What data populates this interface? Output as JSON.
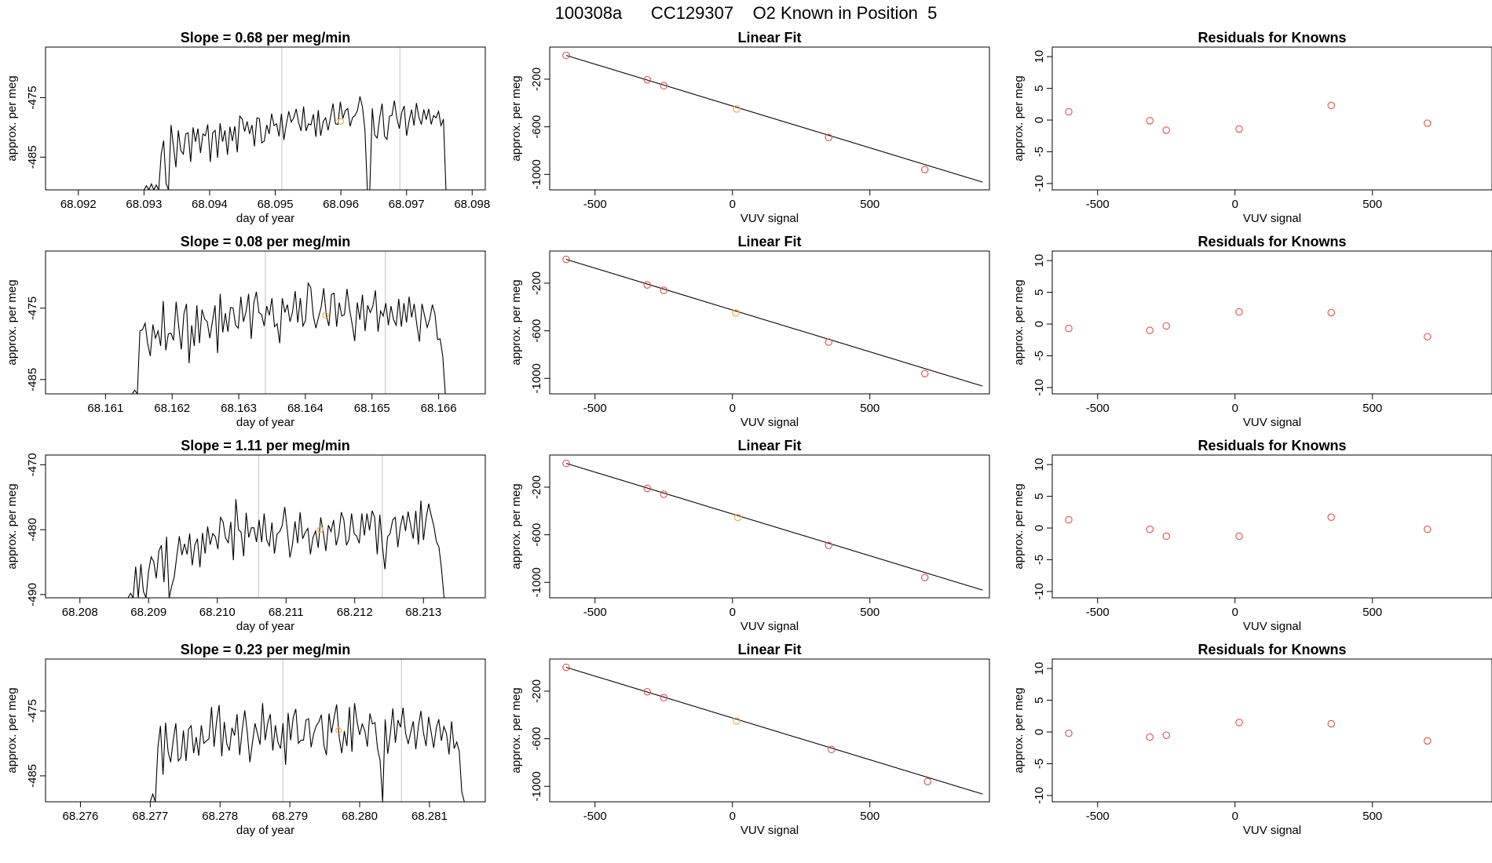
{
  "figure_title": "100308a      CC129307    O2 Known in Position  5",
  "colors": {
    "trace": "#000000",
    "reference_line": "#cccccc",
    "known_point": "#d9534f",
    "sample_point": "#f0ad4e",
    "fit_line": "#000000"
  },
  "chart_data": [
    {
      "type": "line",
      "row": 1,
      "title": "Slope =  0.68  per meg/min",
      "xlabel": "day of year",
      "ylabel": "approx. per meg",
      "xlim": [
        68.0915,
        68.0982
      ],
      "ylim": [
        -490.5,
        -466.5
      ],
      "xticks": [
        "68.092",
        "68.093",
        "68.094",
        "68.095",
        "68.096",
        "68.097",
        "68.098"
      ],
      "yticks": [
        "-485",
        "-475"
      ],
      "vlines": [
        68.0951,
        68.0969
      ],
      "series": [
        {
          "x_start": 68.093,
          "x_end": 68.0976,
          "values": [
            -490.5,
            -489.8,
            -490.5,
            -489.5,
            -490.5,
            -489.7,
            -490.5,
            -484.5,
            -482.2,
            -489.4,
            -490.5,
            -479.6,
            -483.2,
            -486.7,
            -480.5,
            -483.9,
            -484.5,
            -481.1,
            -480.9,
            -485.8,
            -480.0,
            -482.4,
            -480.2,
            -484.3,
            -481.1,
            -481.4,
            -479.5,
            -485.8,
            -480.9,
            -480.5,
            -485.1,
            -479.3,
            -482.4,
            -480.5,
            -484.6,
            -479.9,
            -482.3,
            -479.8,
            -484.2,
            -478.1,
            -478.6,
            -480.7,
            -479.0,
            -481.1,
            -479.6,
            -483.2,
            -478.4,
            -478.5,
            -482.6,
            -482.3,
            -479.6,
            -481.1,
            -477.7,
            -479.7,
            -479.4,
            -481.5,
            -477.7,
            -482.1,
            -479.4,
            -477.3,
            -479.1,
            -478.4,
            -476.9,
            -479.2,
            -480.6,
            -476.5,
            -480.6,
            -479.4,
            -479.6,
            -477.8,
            -481.6,
            -477.1,
            -481.4,
            -479.0,
            -478.4,
            -480.5,
            -478.3,
            -476.0,
            -479.4,
            -479.5,
            -475.7,
            -478.5,
            -477.2,
            -476.8,
            -479.8,
            -478.3,
            -478.0,
            -477.1,
            -474.8,
            -476.6,
            -480.4,
            -490.5,
            -490.5,
            -476.8,
            -481.3,
            -481.8,
            -478.4,
            -476.0,
            -481.5,
            -482.0,
            -478.1,
            -478.0,
            -475.5,
            -478.4,
            -480.2,
            -477.5,
            -476.4,
            -481.4,
            -478.9,
            -477.0,
            -479.7,
            -475.9,
            -478.3,
            -479.5,
            -477.0,
            -478.7,
            -476.9,
            -479.5,
            -478.0,
            -478.4,
            -477.3,
            -479.7,
            -478.6,
            -490.5
          ]
        }
      ],
      "highlight": {
        "x": 68.096,
        "y": -479.0
      }
    },
    {
      "type": "scatter",
      "row": 1,
      "title": "Linear Fit",
      "xlabel": "VUV signal",
      "ylabel": "approx. per meg",
      "xlim": [
        -665,
        935
      ],
      "ylim": [
        -1130,
        70
      ],
      "xticks": [
        "-500",
        "0",
        "500"
      ],
      "yticks": [
        "-1000",
        "-600",
        "-200"
      ],
      "fit_line": {
        "x": [
          -605,
          910
        ],
        "y": [
          0,
          -1065
        ]
      },
      "known_points": {
        "x": [
          -605,
          -310,
          -250,
          350,
          700
        ],
        "y": [
          0,
          -205,
          -255,
          -690,
          -960
        ]
      },
      "sample_point": {
        "x": 15,
        "y": -450
      }
    },
    {
      "type": "scatter",
      "row": 1,
      "title": "Residuals for Knowns",
      "xlabel": "VUV signal",
      "ylabel": "approx. per meg",
      "xlim": [
        -665,
        935
      ],
      "ylim": [
        -11,
        11.5
      ],
      "xticks": [
        "-500",
        "0",
        "500"
      ],
      "yticks": [
        "-10",
        "-5",
        "0",
        "5",
        "10"
      ],
      "known_points": {
        "x": [
          -605,
          -310,
          -250,
          15,
          350,
          700
        ],
        "y": [
          1.3,
          -0.1,
          -1.6,
          -1.4,
          2.3,
          -0.5
        ]
      }
    },
    {
      "type": "line",
      "row": 2,
      "title": "Slope =  0.08  per meg/min",
      "xlabel": "day of year",
      "ylabel": "approx. per meg",
      "xlim": [
        68.1601,
        68.1667
      ],
      "ylim": [
        -487,
        -467
      ],
      "xticks": [
        "68.161",
        "68.162",
        "68.163",
        "68.164",
        "68.165",
        "68.166"
      ],
      "yticks": [
        "-485",
        "-475"
      ],
      "vlines": [
        68.1634,
        68.1652
      ],
      "series": [
        {
          "x_start": 68.1614,
          "x_end": 68.1661,
          "values": [
            -487.0,
            -486.5,
            -487.0,
            -478.2,
            -478.0,
            -477.1,
            -480.0,
            -481.7,
            -477.3,
            -479.2,
            -478.2,
            -480.3,
            -474.0,
            -480.9,
            -478.6,
            -478.5,
            -479.5,
            -474.1,
            -477.6,
            -480.8,
            -475.8,
            -474.4,
            -482.7,
            -477.4,
            -480.3,
            -474.6,
            -479.9,
            -475.2,
            -476.5,
            -476.9,
            -479.2,
            -476.9,
            -474.6,
            -481.3,
            -473.0,
            -478.4,
            -475.7,
            -478.3,
            -474.9,
            -475.0,
            -477.4,
            -477.8,
            -473.4,
            -476.9,
            -475.5,
            -473.0,
            -479.3,
            -474.3,
            -472.7,
            -475.6,
            -475.9,
            -477.5,
            -474.7,
            -476.0,
            -473.6,
            -477.6,
            -477.2,
            -479.9,
            -473.6,
            -475.6,
            -474.5,
            -476.9,
            -475.5,
            -472.6,
            -477.0,
            -473.6,
            -477.5,
            -476.7,
            -471.5,
            -472.1,
            -476.1,
            -477.8,
            -476.3,
            -474.9,
            -472.2,
            -476.0,
            -477.5,
            -473.1,
            -472.9,
            -477.6,
            -474.2,
            -476.1,
            -475.9,
            -472.3,
            -475.1,
            -477.2,
            -479.6,
            -474.2,
            -476.6,
            -473.1,
            -478.2,
            -474.6,
            -475.6,
            -474.7,
            -472.5,
            -478.3,
            -475.4,
            -476.1,
            -474.3,
            -477.4,
            -474.7,
            -476.6,
            -477.4,
            -473.7,
            -477.6,
            -474.3,
            -477.0,
            -473.4,
            -476.3,
            -474.4,
            -477.3,
            -479.7,
            -474.4,
            -476.1,
            -477.7,
            -476.5,
            -474.5,
            -475.8,
            -479.4,
            -479.3,
            -481.7,
            -487.0
          ]
        }
      ],
      "highlight": {
        "x": 68.1643,
        "y": -476.0
      }
    },
    {
      "type": "scatter",
      "row": 2,
      "title": "Linear Fit",
      "xlabel": "VUV signal",
      "ylabel": "approx. per meg",
      "xlim": [
        -665,
        935
      ],
      "ylim": [
        -1130,
        70
      ],
      "xticks": [
        "-500",
        "0",
        "500"
      ],
      "yticks": [
        "-1000",
        "-600",
        "-200"
      ],
      "fit_line": {
        "x": [
          -605,
          910
        ],
        "y": [
          0,
          -1065
        ]
      },
      "known_points": {
        "x": [
          -605,
          -310,
          -250,
          350,
          700
        ],
        "y": [
          0,
          -215,
          -260,
          -695,
          -960
        ]
      },
      "sample_point": {
        "x": 12,
        "y": -450
      }
    },
    {
      "type": "scatter",
      "row": 2,
      "title": "Residuals for Knowns",
      "xlabel": "VUV signal",
      "ylabel": "approx. per meg",
      "xlim": [
        -665,
        935
      ],
      "ylim": [
        -11,
        11.5
      ],
      "xticks": [
        "-500",
        "0",
        "500"
      ],
      "yticks": [
        "-10",
        "-5",
        "0",
        "5",
        "10"
      ],
      "known_points": {
        "x": [
          -605,
          -310,
          -250,
          15,
          350,
          700
        ],
        "y": [
          -0.7,
          -1.0,
          -0.3,
          1.9,
          1.8,
          -2.0
        ]
      }
    },
    {
      "type": "line",
      "row": 3,
      "title": "Slope =  1.11  per meg/min",
      "xlabel": "day of year",
      "ylabel": "approx. per meg",
      "xlim": [
        68.2075,
        68.2139
      ],
      "ylim": [
        -490.5,
        -468.5
      ],
      "xticks": [
        "68.208",
        "68.209",
        "68.210",
        "68.211",
        "68.212",
        "68.213"
      ],
      "yticks": [
        "-490",
        "-480",
        "-470"
      ],
      "vlines": [
        68.2106,
        68.2124
      ],
      "series": [
        {
          "x_start": 68.2087,
          "x_end": 68.2133,
          "values": [
            -490.5,
            -489.8,
            -490.5,
            -485.7,
            -490.5,
            -485.3,
            -489.5,
            -490.5,
            -486.4,
            -484.2,
            -484.9,
            -487.5,
            -483.3,
            -482.4,
            -488.1,
            -481.1,
            -490.5,
            -488.7,
            -487.3,
            -484.0,
            -481.0,
            -483.9,
            -482.2,
            -483.8,
            -480.6,
            -485.5,
            -482.4,
            -481.4,
            -485.8,
            -480.5,
            -483.7,
            -479.5,
            -482.3,
            -480.6,
            -481.1,
            -483.0,
            -478.1,
            -478.8,
            -481.3,
            -482.0,
            -478.8,
            -484.7,
            -475.3,
            -480.0,
            -480.4,
            -484.1,
            -477.4,
            -481.2,
            -479.7,
            -479.7,
            -481.9,
            -478.5,
            -481.9,
            -477.5,
            -481.6,
            -482.5,
            -478.9,
            -483.7,
            -480.7,
            -480.3,
            -479.4,
            -476.5,
            -480.1,
            -484.3,
            -482.3,
            -478.7,
            -482.1,
            -477.3,
            -481.4,
            -480.4,
            -479.8,
            -483.8,
            -481.2,
            -480.2,
            -482.8,
            -478.1,
            -480.4,
            -483.3,
            -479.3,
            -480.3,
            -478.5,
            -482.4,
            -480.8,
            -477.3,
            -478.5,
            -482.4,
            -481.5,
            -477.5,
            -480.6,
            -481.0,
            -482.1,
            -477.5,
            -480.9,
            -477.5,
            -480.1,
            -477.1,
            -478.1,
            -483.8,
            -477.7,
            -482.6,
            -486.1,
            -481.1,
            -480.6,
            -478.5,
            -478.1,
            -482.7,
            -479.5,
            -477.8,
            -480.2,
            -477.2,
            -479.4,
            -481.4,
            -477.1,
            -482.3,
            -475.5,
            -481.6,
            -478.3,
            -476.0,
            -477.8,
            -479.4,
            -481.8,
            -482.7,
            -486.0,
            -490.5
          ]
        }
      ],
      "highlight": {
        "x": 68.2115,
        "y": -480.0
      }
    },
    {
      "type": "scatter",
      "row": 3,
      "title": "Linear Fit",
      "xlabel": "VUV signal",
      "ylabel": "approx. per meg",
      "xlim": [
        -665,
        935
      ],
      "ylim": [
        -1130,
        70
      ],
      "xticks": [
        "-500",
        "0",
        "500"
      ],
      "yticks": [
        "-1000",
        "-600",
        "-200"
      ],
      "fit_line": {
        "x": [
          -605,
          910
        ],
        "y": [
          0,
          -1065
        ]
      },
      "known_points": {
        "x": [
          -605,
          -310,
          -250,
          350,
          700
        ],
        "y": [
          0,
          -210,
          -260,
          -690,
          -960
        ]
      },
      "sample_point": {
        "x": 20,
        "y": -455
      }
    },
    {
      "type": "scatter",
      "row": 3,
      "title": "Residuals for Knowns",
      "xlabel": "VUV signal",
      "ylabel": "approx. per meg",
      "xlim": [
        -665,
        935
      ],
      "ylim": [
        -11,
        11.5
      ],
      "xticks": [
        "-500",
        "0",
        "500"
      ],
      "yticks": [
        "-10",
        "-5",
        "0",
        "5",
        "10"
      ],
      "known_points": {
        "x": [
          -605,
          -310,
          -250,
          15,
          350,
          700
        ],
        "y": [
          1.3,
          -0.2,
          -1.3,
          -1.3,
          1.7,
          -0.2
        ]
      }
    },
    {
      "type": "line",
      "row": 4,
      "title": "Slope =  0.23  per meg/min",
      "xlabel": "day of year",
      "ylabel": "approx. per meg",
      "xlim": [
        68.2755,
        68.2818
      ],
      "ylim": [
        -489,
        -467
      ],
      "xticks": [
        "68.276",
        "68.277",
        "68.278",
        "68.279",
        "68.280",
        "68.281"
      ],
      "yticks": [
        "-485",
        "-475"
      ],
      "vlines": [
        68.2789,
        68.2806
      ],
      "series": [
        {
          "x_start": 68.277,
          "x_end": 68.2815,
          "values": [
            -489.0,
            -487.8,
            -489.0,
            -480.6,
            -477.3,
            -484.8,
            -476.8,
            -481.3,
            -482.9,
            -479.5,
            -476.9,
            -482.7,
            -482.2,
            -478.0,
            -482.7,
            -477.8,
            -477.3,
            -481.5,
            -479.0,
            -481.9,
            -477.2,
            -480.0,
            -479.6,
            -479.3,
            -474.4,
            -480.5,
            -476.5,
            -474.1,
            -482.0,
            -476.7,
            -480.1,
            -481.1,
            -477.6,
            -478.8,
            -475.5,
            -481.8,
            -478.0,
            -474.9,
            -478.3,
            -482.9,
            -480.0,
            -476.9,
            -478.5,
            -480.2,
            -473.8,
            -479.5,
            -476.9,
            -475.5,
            -481.1,
            -477.2,
            -479.8,
            -480.8,
            -476.9,
            -483.3,
            -475.3,
            -479.5,
            -476.0,
            -474.7,
            -480.0,
            -479.5,
            -479.5,
            -476.4,
            -476.2,
            -480.6,
            -478.5,
            -477.3,
            -476.7,
            -475.6,
            -480.3,
            -481.8,
            -475.4,
            -478.4,
            -476.0,
            -474.0,
            -479.1,
            -481.5,
            -478.1,
            -480.4,
            -474.4,
            -481.3,
            -473.8,
            -476.6,
            -478.7,
            -477.0,
            -478.0,
            -480.5,
            -475.4,
            -477.0,
            -476.8,
            -480.8,
            -482.6,
            -489.0,
            -476.3,
            -481.6,
            -478.6,
            -474.6,
            -479.9,
            -476.4,
            -477.5,
            -474.5,
            -478.4,
            -480.1,
            -478.3,
            -476.6,
            -480.9,
            -477.4,
            -475.0,
            -478.4,
            -480.4,
            -475.9,
            -478.3,
            -480.7,
            -477.6,
            -476.3,
            -479.6,
            -477.4,
            -478.5,
            -481.7,
            -476.6,
            -480.8,
            -479.8,
            -481.2,
            -487.5,
            -489.0
          ]
        }
      ],
      "highlight": {
        "x": 68.2797,
        "y": -478.0
      }
    },
    {
      "type": "scatter",
      "row": 4,
      "title": "Linear Fit",
      "xlabel": "VUV signal",
      "ylabel": "approx. per meg",
      "xlim": [
        -665,
        935
      ],
      "ylim": [
        -1130,
        70
      ],
      "xticks": [
        "-500",
        "0",
        "500"
      ],
      "yticks": [
        "-1000",
        "-600",
        "-200"
      ],
      "fit_line": {
        "x": [
          -605,
          910
        ],
        "y": [
          0,
          -1065
        ]
      },
      "known_points": {
        "x": [
          -605,
          -310,
          -250,
          360,
          710
        ],
        "y": [
          0,
          -205,
          -255,
          -690,
          -960
        ]
      },
      "sample_point": {
        "x": 15,
        "y": -450
      }
    },
    {
      "type": "scatter",
      "row": 4,
      "title": "Residuals for Knowns",
      "xlabel": "VUV signal",
      "ylabel": "approx. per meg",
      "xlim": [
        -665,
        935
      ],
      "ylim": [
        -11,
        11.5
      ],
      "xticks": [
        "-500",
        "0",
        "500"
      ],
      "yticks": [
        "-10",
        "-5",
        "0",
        "5",
        "10"
      ],
      "known_points": {
        "x": [
          -605,
          -310,
          -250,
          15,
          350,
          700
        ],
        "y": [
          -0.2,
          -0.8,
          -0.5,
          1.5,
          1.3,
          -1.4
        ]
      }
    }
  ]
}
